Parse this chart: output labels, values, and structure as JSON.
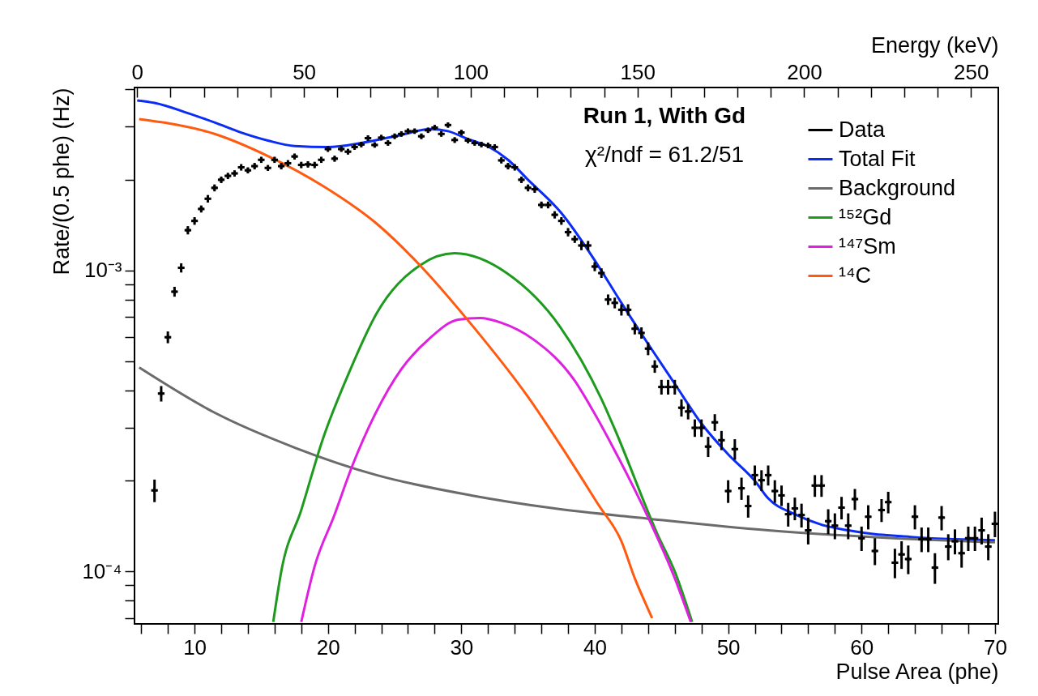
{
  "chart_data": {
    "type": "scatter",
    "xlabel": "Pulse Area (phe)",
    "ylabel": "Rate/(0.5 phe) (Hz)",
    "x2label": "Energy (keV)",
    "log": "y",
    "xlim": [
      5.5,
      70.25
    ],
    "ylim": [
      6.7e-05,
      0.00405
    ],
    "x2lim": [
      -0.8,
      258.2
    ],
    "xticks": [
      {
        "value": 6,
        "label": null
      },
      {
        "value": 8,
        "label": null
      },
      10,
      {
        "value": 12,
        "label": null
      },
      {
        "value": 14,
        "label": null
      },
      {
        "value": 16,
        "label": null
      },
      {
        "value": 18,
        "label": null
      },
      20,
      {
        "value": 22,
        "label": null
      },
      {
        "value": 24,
        "label": null
      },
      {
        "value": 26,
        "label": null
      },
      {
        "value": 28,
        "label": null
      },
      30,
      {
        "value": 32,
        "label": null
      },
      {
        "value": 34,
        "label": null
      },
      {
        "value": 36,
        "label": null
      },
      {
        "value": 38,
        "label": null
      },
      40,
      {
        "value": 42,
        "label": null
      },
      {
        "value": 44,
        "label": null
      },
      {
        "value": 46,
        "label": null
      },
      {
        "value": 48,
        "label": null
      },
      50,
      {
        "value": 52,
        "label": null
      },
      {
        "value": 54,
        "label": null
      },
      {
        "value": 56,
        "label": null
      },
      {
        "value": 58,
        "label": null
      },
      60,
      {
        "value": 62,
        "label": null
      },
      {
        "value": 64,
        "label": null
      },
      {
        "value": 66,
        "label": null
      },
      {
        "value": 68,
        "label": null
      },
      70
    ],
    "x2ticks": [
      0,
      {
        "value": 10,
        "label": null
      },
      {
        "value": 20,
        "label": null
      },
      {
        "value": 30,
        "label": null
      },
      {
        "value": 40,
        "label": null
      },
      50,
      {
        "value": 60,
        "label": null
      },
      {
        "value": 70,
        "label": null
      },
      {
        "value": 80,
        "label": null
      },
      {
        "value": 90,
        "label": null
      },
      100,
      {
        "value": 110,
        "label": null
      },
      {
        "value": 120,
        "label": null
      },
      {
        "value": 130,
        "label": null
      },
      {
        "value": 140,
        "label": null
      },
      150,
      {
        "value": 160,
        "label": null
      },
      {
        "value": 170,
        "label": null
      },
      {
        "value": 180,
        "label": null
      },
      {
        "value": 190,
        "label": null
      },
      200,
      {
        "value": 210,
        "label": null
      },
      {
        "value": 220,
        "label": null
      },
      {
        "value": 230,
        "label": null
      },
      {
        "value": 240,
        "label": null
      },
      250
    ],
    "yticks": [
      {
        "value": 7e-05,
        "label": null
      },
      {
        "value": 8e-05,
        "label": null
      },
      {
        "value": 9e-05,
        "label": null
      },
      {
        "value": 0.0001,
        "label": "10⁻⁴"
      },
      {
        "value": 0.0002,
        "label": null
      },
      {
        "value": 0.0003,
        "label": null
      },
      {
        "value": 0.0004,
        "label": null
      },
      {
        "value": 0.0005,
        "label": null
      },
      {
        "value": 0.0006,
        "label": null
      },
      {
        "value": 0.0007,
        "label": null
      },
      {
        "value": 0.0008,
        "label": null
      },
      {
        "value": 0.0009,
        "label": null
      },
      {
        "value": 0.001,
        "label": "10⁻³"
      },
      {
        "value": 0.002,
        "label": null
      },
      {
        "value": 0.003,
        "label": null
      },
      {
        "value": 0.004,
        "label": null
      }
    ],
    "legend": "top right",
    "annotations": [
      "Run 1, With Gd",
      "χ²/ndf = 61.2/51"
    ],
    "series": [
      {
        "name": "Data",
        "color": "#000000",
        "x": [
          7,
          7.5,
          8,
          8.5,
          9,
          9.5,
          10,
          10.5,
          11,
          11.5,
          12,
          12.5,
          13,
          13.5,
          14,
          14.5,
          15,
          15.5,
          16,
          16.5,
          17,
          17.5,
          18,
          18.5,
          19,
          19.5,
          20,
          20.5,
          21,
          21.5,
          22,
          22.5,
          23,
          23.5,
          24,
          24.5,
          25,
          25.5,
          26,
          26.5,
          27,
          27.5,
          28,
          28.5,
          29,
          29.5,
          30,
          30.5,
          31,
          31.5,
          32,
          32.5,
          33,
          33.5,
          34,
          34.5,
          35,
          35.5,
          36,
          36.5,
          37,
          37.5,
          38,
          38.5,
          39,
          39.5,
          40,
          40.5,
          41,
          41.5,
          42,
          42.5,
          43,
          43.5,
          44,
          44.5,
          45,
          45.5,
          46,
          46.5,
          47,
          47.5,
          48,
          48.5,
          49,
          49.5,
          50,
          50.5,
          51,
          51.5,
          52,
          52.5,
          53,
          53.5,
          54,
          54.5,
          55,
          55.5,
          56,
          56.5,
          57,
          57.5,
          58,
          58.5,
          59,
          59.5,
          60,
          60.5,
          61,
          61.5,
          62,
          62.5,
          63,
          63.5,
          64,
          64.5,
          65,
          65.5,
          66,
          66.5,
          67,
          67.5,
          68,
          68.5,
          69,
          69.5,
          70
        ],
        "values": [
          0.000186,
          0.00039,
          0.0006,
          0.00085,
          0.00102,
          0.00136,
          0.00146,
          0.0016,
          0.00173,
          0.00188,
          0.002,
          0.00206,
          0.0021,
          0.0022,
          0.00215,
          0.00222,
          0.00233,
          0.00219,
          0.00233,
          0.00222,
          0.00227,
          0.00239,
          0.00224,
          0.00225,
          0.00224,
          0.00233,
          0.00253,
          0.00235,
          0.00253,
          0.00248,
          0.00257,
          0.00262,
          0.00275,
          0.00261,
          0.00276,
          0.00265,
          0.00279,
          0.00284,
          0.0029,
          0.0029,
          0.00279,
          0.00292,
          0.00298,
          0.00284,
          0.00304,
          0.00271,
          0.00287,
          0.0027,
          0.00265,
          0.00262,
          0.0026,
          0.00257,
          0.00232,
          0.00222,
          0.0022,
          0.002,
          0.00188,
          0.00186,
          0.00165,
          0.00165,
          0.00153,
          0.00146,
          0.00134,
          0.00127,
          0.00121,
          0.00121,
          0.00103,
          0.00098,
          0.0008,
          0.00078,
          0.00074,
          0.00074,
          0.00064,
          0.00062,
          0.00055,
          0.00048,
          0.00041,
          0.00041,
          0.00041,
          0.00035,
          0.00034,
          0.0003,
          0.0003,
          0.00026,
          0.000313,
          0.000273,
          0.000185,
          0.000255,
          0.000189,
          0.000165,
          0.000209,
          0.000201,
          0.000209,
          0.000185,
          0.000179,
          0.000155,
          0.000162,
          0.000154,
          0.000137,
          0.000193,
          0.000193,
          0.000147,
          0.000142,
          0.000163,
          0.000142,
          0.000174,
          0.000129,
          0.000152,
          0.000117,
          0.00016,
          0.00017,
          0.000107,
          0.000114,
          0.00011,
          0.000152,
          0.000128,
          0.000128,
          0.000103,
          0.000151,
          0.000121,
          0.000126,
          0.000115,
          0.000129,
          0.000129,
          0.000137,
          0.000121,
          0.000144
        ],
        "errors": [
          1.6e-05,
          2.3e-05,
          2.7e-05,
          3.2e-05,
          3.6e-05,
          4.3e-05,
          4.3e-05,
          4.3e-05,
          5e-05,
          5e-05,
          5e-05,
          5e-05,
          5e-05,
          5.5e-05,
          5e-05,
          5.5e-05,
          5.5e-05,
          5e-05,
          5.5e-05,
          5.5e-05,
          5.5e-05,
          5.5e-05,
          5.5e-05,
          5.5e-05,
          5.5e-05,
          5.5e-05,
          5.5e-05,
          5.5e-05,
          5.5e-05,
          5.5e-05,
          5.5e-05,
          5.5e-05,
          6e-05,
          5.5e-05,
          6e-05,
          5.5e-05,
          6e-05,
          6e-05,
          6e-05,
          6e-05,
          6e-05,
          6e-05,
          6e-05,
          6e-05,
          6e-05,
          6e-05,
          6e-05,
          5.5e-05,
          5.5e-05,
          5.5e-05,
          5.5e-05,
          5.5e-05,
          5.5e-05,
          5.5e-05,
          5.5e-05,
          5e-05,
          5e-05,
          5e-05,
          4.3e-05,
          4.3e-05,
          4.3e-05,
          4.3e-05,
          4.3e-05,
          3.6e-05,
          4.3e-05,
          4.3e-05,
          3.6e-05,
          3.6e-05,
          3.2e-05,
          3.2e-05,
          3.2e-05,
          3.2e-05,
          2.7e-05,
          2.7e-05,
          2.7e-05,
          2.3e-05,
          2.3e-05,
          2.3e-05,
          2.3e-05,
          2.3e-05,
          2e-05,
          2e-05,
          2e-05,
          2e-05,
          2e-05,
          2e-05,
          1.6e-05,
          2e-05,
          1.6e-05,
          1.4e-05,
          1.6e-05,
          1.6e-05,
          1.6e-05,
          1.6e-05,
          1.4e-05,
          1.4e-05,
          1.4e-05,
          1.4e-05,
          1.4e-05,
          1.6e-05,
          1.6e-05,
          1.4e-05,
          1.4e-05,
          1.4e-05,
          1.4e-05,
          1.4e-05,
          1.2e-05,
          1.4e-05,
          1.2e-05,
          1.4e-05,
          1.4e-05,
          1.2e-05,
          1.2e-05,
          1.2e-05,
          1.4e-05,
          1.2e-05,
          1.2e-05,
          1.2e-05,
          1.4e-05,
          1.2e-05,
          1.2e-05,
          1.2e-05,
          1.2e-05,
          1.2e-05,
          1.4e-05,
          1.2e-05,
          1.4e-05
        ],
        "xerrors": [
          0.25,
          0.25,
          0.25,
          0.25,
          0.25,
          0.25,
          0.25,
          0.25,
          0.25,
          0.25,
          0.25,
          0.25,
          0.25,
          0.25,
          0.25,
          0.25,
          0.25,
          0.25,
          0.25,
          0.25,
          0.25,
          0.25,
          0.25,
          0.25,
          0.25,
          0.25,
          0.25,
          0.25,
          0.25,
          0.25,
          0.25,
          0.25,
          0.25,
          0.25,
          0.25,
          0.25,
          0.25,
          0.25,
          0.25,
          0.25,
          0.25,
          0.25,
          0.25,
          0.25,
          0.25,
          0.25,
          0.25,
          0.25,
          0.25,
          0.25,
          0.25,
          0.25,
          0.25,
          0.25,
          0.25,
          0.25,
          0.25,
          0.25,
          0.25,
          0.25,
          0.25,
          0.25,
          0.25,
          0.25,
          0.25,
          0.25,
          0.25,
          0.25,
          0.25,
          0.25,
          0.25,
          0.25,
          0.25,
          0.25,
          0.25,
          0.25,
          0.25,
          0.25,
          0.25,
          0.25,
          0.25,
          0.25,
          0.25,
          0.25,
          0.25,
          0.25,
          0.25,
          0.25,
          0.25,
          0.25,
          0.25,
          0.25,
          0.25,
          0.25,
          0.25,
          0.25,
          0.25,
          0.25,
          0.25,
          0.25,
          0.25,
          0.25,
          0.25,
          0.25,
          0.25,
          0.25,
          0.25,
          0.25,
          0.25,
          0.25,
          0.25,
          0.25,
          0.25,
          0.25,
          0.25,
          0.25,
          0.25,
          0.25,
          0.25,
          0.25,
          0.25,
          0.25,
          0.25,
          0.25,
          0.25,
          0.25,
          0.25
        ]
      },
      {
        "name": "Total Fit",
        "type": "line",
        "color": "#0a2cf5",
        "x": [
          5.7,
          7,
          9.5,
          11.5,
          13.5,
          15.5,
          17.5,
          20,
          22.5,
          25.5,
          27.7,
          29,
          30.5,
          32,
          33.5,
          35,
          37.5,
          40,
          42,
          44,
          46,
          48,
          50,
          52,
          53,
          55,
          57,
          59,
          61,
          63,
          65,
          67,
          70
        ],
        "values": [
          0.00367,
          0.0036,
          0.00333,
          0.0031,
          0.00287,
          0.0027,
          0.00259,
          0.00257,
          0.00265,
          0.00282,
          0.00295,
          0.0029,
          0.00273,
          0.00258,
          0.00233,
          0.002,
          0.00155,
          0.00108,
          0.00078,
          0.00057,
          0.00042,
          0.00031,
          0.000245,
          0.0002,
          0.000175,
          0.000155,
          0.000143,
          0.000137,
          0.000133,
          0.000131,
          0.000129,
          0.000128,
          0.000127
        ]
      },
      {
        "name": "Background",
        "type": "line",
        "color": "#6b6b6b",
        "x": [
          5.85,
          11.5,
          17.6,
          23.65,
          30.75,
          37,
          43.9,
          53,
          61,
          70
        ],
        "values": [
          0.000476,
          0.000337,
          0.000257,
          0.000209,
          0.000179,
          0.000162,
          0.00015,
          0.000137,
          0.00013,
          0.000125
        ]
      },
      {
        "name": "¹⁵²Gd",
        "type": "line",
        "color": "#1e9a1e",
        "x": [
          15.9,
          16.5,
          18,
          19.6,
          21.6,
          23.65,
          26.9,
          29.5,
          33.4,
          37.4,
          40.5,
          41.5,
          44.7,
          46,
          47.3
        ],
        "values": [
          6.8e-05,
          0.0001,
          0.00016,
          0.000274,
          0.00046,
          0.00072,
          0.00104,
          0.00114,
          0.00098,
          0.00065,
          0.000374,
          0.000297,
          0.000133,
          0.0001,
          6.8e-05
        ]
      },
      {
        "name": "¹⁴⁷Sm",
        "type": "line",
        "color": "#e020e0",
        "x": [
          18,
          19,
          20.46,
          21.87,
          23.49,
          25.5,
          27.54,
          29.76,
          31.4,
          33,
          35.4,
          38.5,
          39.9,
          41.5,
          44.1,
          46,
          47.2
        ],
        "values": [
          6.8e-05,
          0.000104,
          0.000153,
          0.000227,
          0.00033,
          0.00047,
          0.00059,
          0.000686,
          0.000695,
          0.00067,
          0.00059,
          0.00043,
          0.00034,
          0.000252,
          0.000148,
          9.5e-05,
          6.8e-05
        ]
      },
      {
        "name": "¹⁴C",
        "type": "line",
        "color": "#ff5a10",
        "x": [
          5.85,
          11.5,
          15.56,
          19.6,
          23.65,
          26.9,
          30.7,
          35,
          37.5,
          40.3,
          42,
          43,
          44,
          44.3
        ],
        "values": [
          0.00318,
          0.00284,
          0.00239,
          0.00191,
          0.00143,
          0.00104,
          0.000666,
          0.00038,
          0.00026,
          0.000166,
          0.000126,
          9.5e-05,
          7.5e-05,
          7e-05
        ]
      }
    ]
  }
}
